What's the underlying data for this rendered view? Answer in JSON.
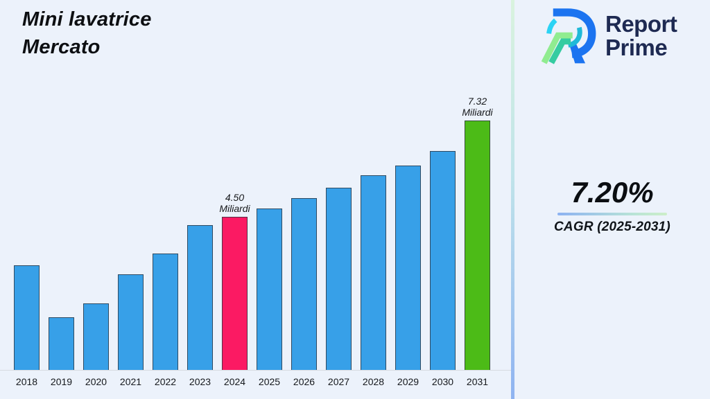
{
  "page": {
    "background": "#ECF2FB"
  },
  "title": {
    "line1": "Mini lavatrice",
    "line2": "Mercato"
  },
  "logo": {
    "word1": "Report",
    "word2": "Prime",
    "navy": "#1E2A52"
  },
  "stat": {
    "value": "7.20%",
    "label": "CAGR (2025-2031)"
  },
  "chart_data": {
    "type": "bar",
    "title": "Mini lavatrice Mercato",
    "unit": "Miliardi",
    "categories": [
      "2018",
      "2019",
      "2020",
      "2021",
      "2022",
      "2023",
      "2024",
      "2025",
      "2026",
      "2027",
      "2028",
      "2029",
      "2030",
      "2031"
    ],
    "values": [
      3.08,
      1.57,
      1.97,
      2.81,
      3.43,
      4.25,
      4.5,
      4.75,
      5.06,
      5.35,
      5.72,
      6.0,
      6.42,
      7.32
    ],
    "labeled_points": [
      {
        "category": "2024",
        "value_label": "4.50",
        "unit_label": "Miliardi"
      },
      {
        "category": "2031",
        "value_label": "7.32",
        "unit_label": "Miliardi"
      }
    ],
    "bar_colors": {
      "default": "#37A0E8",
      "2024": "#FB1A63",
      "2031": "#4CBB17"
    },
    "border_color": "#2d343f",
    "xlabel": "",
    "ylabel": "",
    "ylim": [
      0,
      8
    ],
    "grid": false,
    "legend": false
  }
}
